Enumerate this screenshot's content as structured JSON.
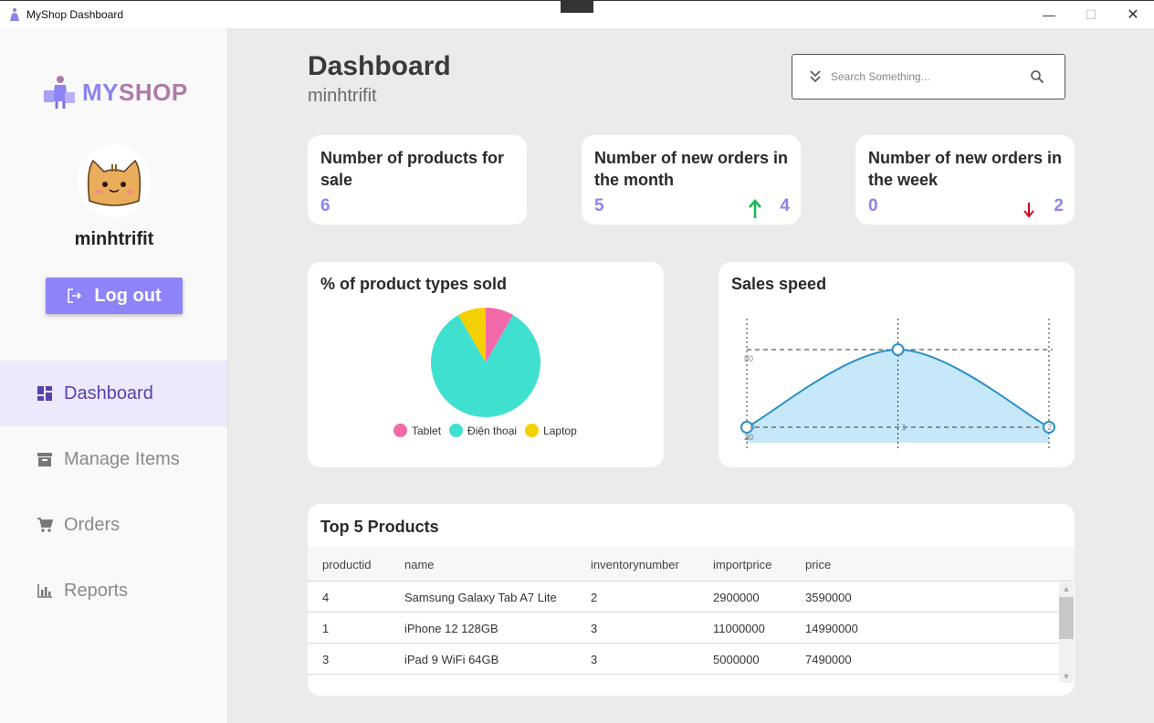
{
  "window": {
    "title": "MyShop Dashboard"
  },
  "sidebar": {
    "brand_my": "MY",
    "brand_shop": "SHOP",
    "username": "minhtrifit",
    "logout_label": "Log out",
    "items": [
      {
        "label": "Dashboard",
        "icon": "dashboard-icon",
        "active": true
      },
      {
        "label": "Manage Items",
        "icon": "archive-icon",
        "active": false
      },
      {
        "label": "Orders",
        "icon": "cart-icon",
        "active": false
      },
      {
        "label": "Reports",
        "icon": "bar-chart-icon",
        "active": false
      }
    ]
  },
  "header": {
    "title": "Dashboard",
    "subtitle": "minhtrifit",
    "search_placeholder": "Search Something..."
  },
  "stats": [
    {
      "label": "Number of products for sale",
      "value": "6"
    },
    {
      "label": "Number of new orders in the month",
      "value": "5",
      "delta": "4",
      "trend": "up"
    },
    {
      "label": "Number of new orders in the week",
      "value": "0",
      "delta": "2",
      "trend": "down"
    }
  ],
  "chart_data": [
    {
      "type": "pie",
      "title": "% of product types sold",
      "categories": [
        "Tablet",
        "Điện thoại",
        "Laptop"
      ],
      "values": [
        1,
        10,
        1
      ],
      "colors": [
        "#f36aa8",
        "#40e0d0",
        "#f5d000"
      ]
    },
    {
      "type": "area",
      "title": "Sales speed",
      "x": [
        0,
        1,
        2
      ],
      "values": [
        30,
        80,
        30
      ],
      "ylim": [
        20,
        100
      ],
      "x_tick_labels": [
        "0",
        "1",
        "2"
      ],
      "y_tick_labels": [
        "20",
        "30",
        "80"
      ],
      "line_color": "#2b90c8",
      "fill_color": "#c6e8f8"
    }
  ],
  "top_products": {
    "title": "Top 5 Products",
    "columns": [
      "productid",
      "name",
      "inventorynumber",
      "importprice",
      "price"
    ],
    "rows": [
      [
        "4",
        "Samsung Galaxy Tab A7 Lite",
        "2",
        "2900000",
        "3590000"
      ],
      [
        "1",
        "iPhone 12 128GB",
        "3",
        "11000000",
        "14990000"
      ],
      [
        "3",
        "iPad 9 WiFi 64GB",
        "3",
        "5000000",
        "7490000"
      ]
    ]
  },
  "colors": {
    "accent": "#8c84f8",
    "active_nav_bg": "#ebe9fb",
    "active_nav_text": "#5a3fb0",
    "up": "#1db954",
    "down": "#d0021b"
  }
}
